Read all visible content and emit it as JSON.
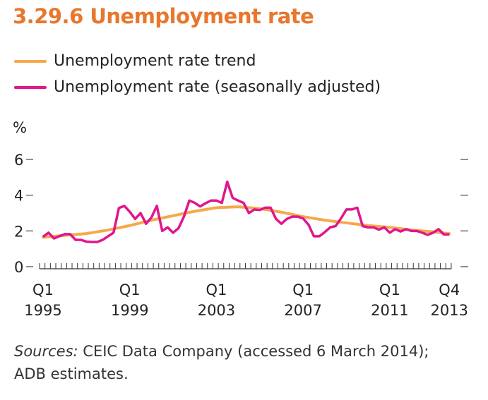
{
  "title": "3.29.6  Unemployment rate",
  "chart_data": {
    "type": "line",
    "title": "3.29.6  Unemployment rate",
    "ylabel": "%",
    "ylim": [
      0,
      6
    ],
    "yticks": [
      "0",
      "2",
      "4",
      "6"
    ],
    "xtick_labels": [
      {
        "q": 0,
        "l1": "Q1",
        "l2": "1995"
      },
      {
        "q": 16,
        "l1": "Q1",
        "l2": "1999"
      },
      {
        "q": 32,
        "l1": "Q1",
        "l2": "2003"
      },
      {
        "q": 48,
        "l1": "Q1",
        "l2": "2007"
      },
      {
        "q": 64,
        "l1": "Q1",
        "l2": "2011"
      },
      {
        "q": 75,
        "l1": "Q4",
        "l2": "2013"
      }
    ],
    "x_unit": "quarter index from Q1 1995 to Q4 2013",
    "legend_position": "top-left",
    "series": [
      {
        "name": "Unemployment rate trend",
        "color": "#F5A94A",
        "x": [
          0,
          4,
          8,
          12,
          16,
          20,
          24,
          28,
          32,
          36,
          40,
          44,
          48,
          52,
          56,
          60,
          64,
          68,
          72,
          75
        ],
        "values": [
          1.65,
          1.75,
          1.85,
          2.05,
          2.3,
          2.6,
          2.85,
          3.1,
          3.3,
          3.35,
          3.25,
          3.05,
          2.8,
          2.6,
          2.45,
          2.3,
          2.2,
          2.05,
          1.95,
          1.85
        ]
      },
      {
        "name": "Unemployment rate (seasonally adjusted)",
        "color": "#E0168C",
        "values": [
          1.67,
          1.9,
          1.58,
          1.7,
          1.82,
          1.82,
          1.5,
          1.5,
          1.4,
          1.38,
          1.38,
          1.5,
          1.7,
          1.9,
          3.28,
          3.4,
          3.07,
          2.67,
          3.0,
          2.4,
          2.75,
          3.4,
          2.0,
          2.2,
          1.9,
          2.15,
          2.8,
          3.7,
          3.57,
          3.37,
          3.55,
          3.7,
          3.7,
          3.57,
          4.75,
          3.85,
          3.7,
          3.57,
          3.0,
          3.2,
          3.17,
          3.3,
          3.3,
          2.67,
          2.4,
          2.67,
          2.8,
          2.8,
          2.7,
          2.35,
          1.7,
          1.7,
          1.93,
          2.2,
          2.27,
          2.7,
          3.2,
          3.2,
          3.3,
          2.27,
          2.2,
          2.2,
          2.07,
          2.2,
          1.9,
          2.1,
          1.97,
          2.1,
          2.0,
          2.0,
          1.9,
          1.78,
          1.9,
          2.1,
          1.8,
          1.8
        ]
      }
    ]
  },
  "sources_label": "Sources:",
  "sources_text": " CEIC Data Company (accessed 6 March 2014);",
  "sources_line2": "ADB estimates."
}
